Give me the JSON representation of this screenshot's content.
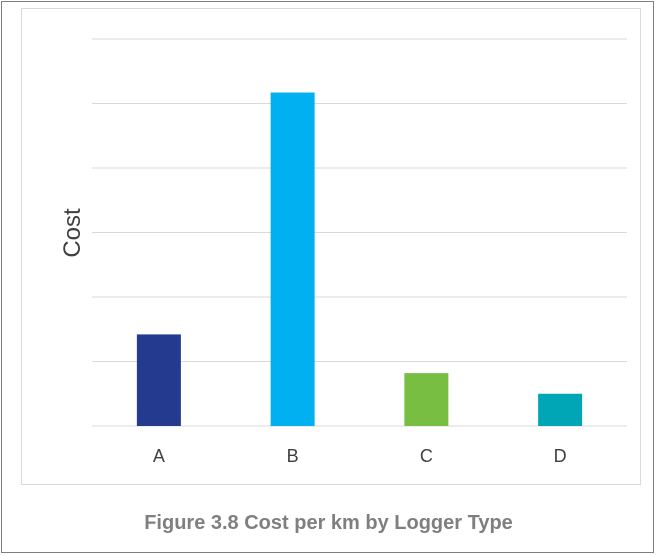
{
  "chart_data": {
    "type": "bar",
    "categories": [
      "A",
      "B",
      "C",
      "D"
    ],
    "values": [
      1.42,
      5.17,
      0.82,
      0.5
    ],
    "colors": [
      "#233A8F",
      "#00B0F0",
      "#77BE43",
      "#00A6B6"
    ],
    "ylabel": "Cost",
    "xlabel": "",
    "ylim": [
      0,
      6
    ],
    "grid": true,
    "y_tick_labels_shown": false,
    "legend": "none"
  },
  "caption": "Figure 3.8 Cost per km by Logger Type"
}
